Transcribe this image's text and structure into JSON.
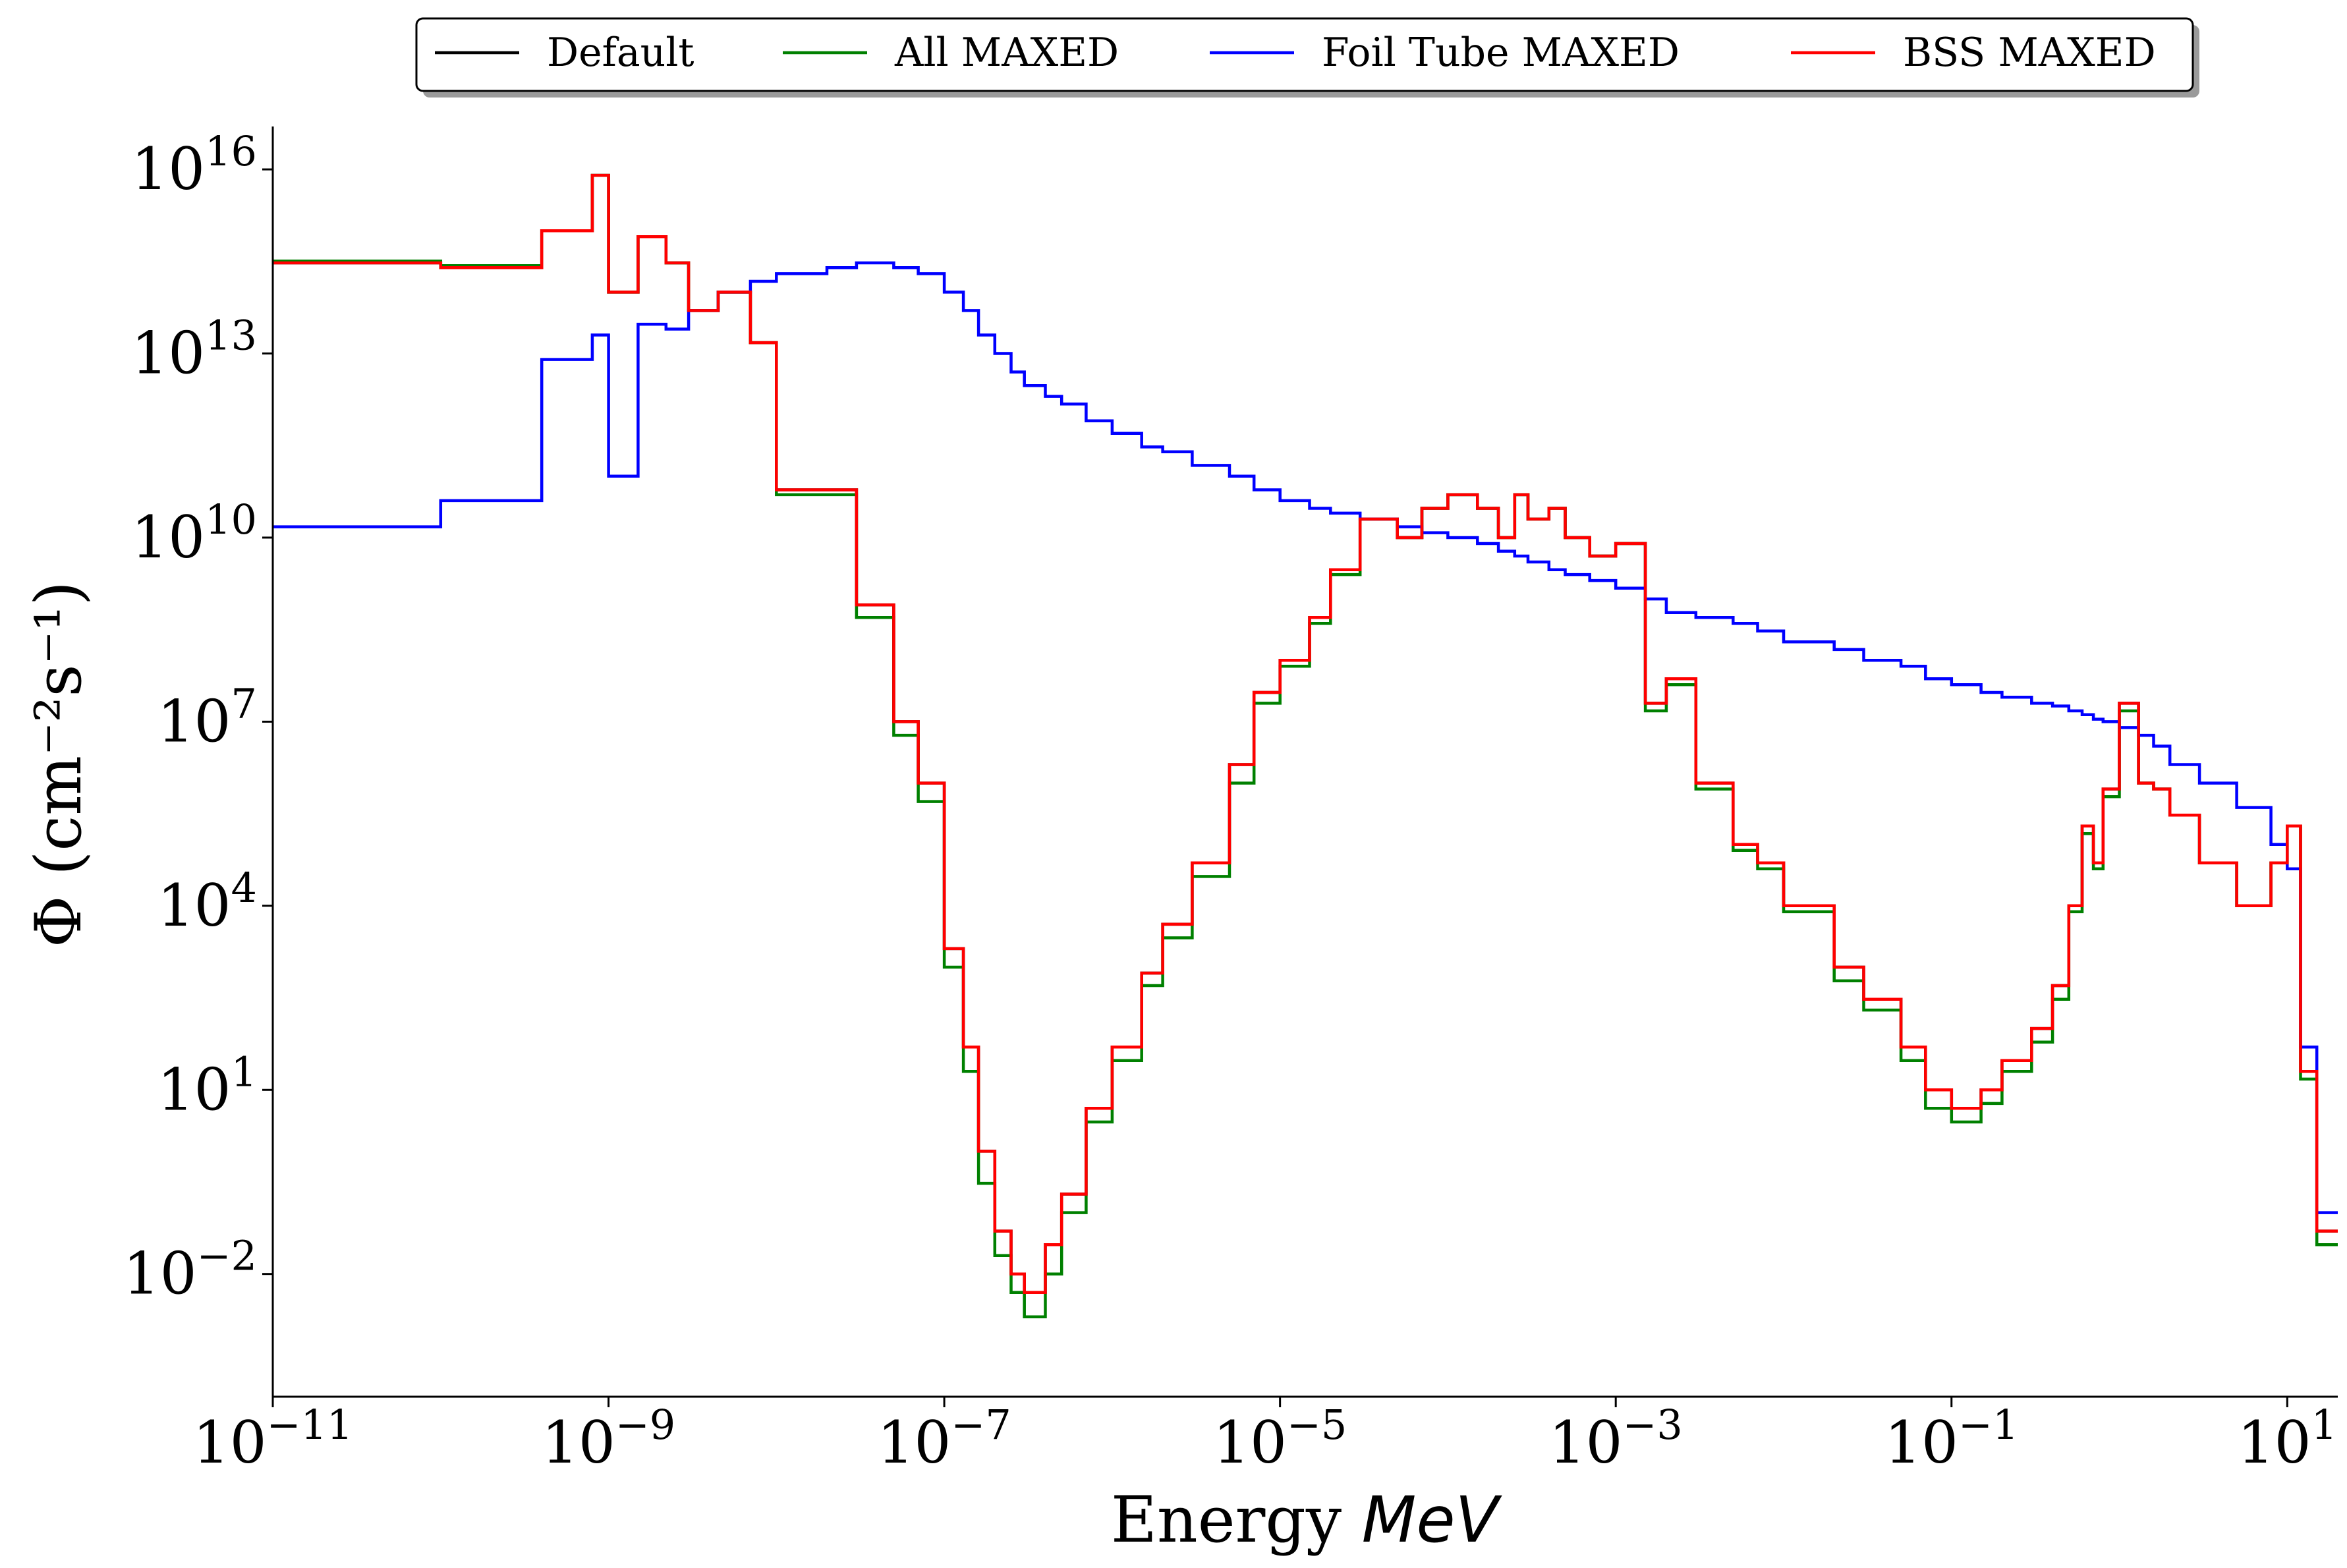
{
  "chart_data": {
    "type": "line",
    "step": true,
    "xscale": "log",
    "yscale": "log",
    "xlabel": "Energy",
    "xlabel_unit": "MeV",
    "ylabel": "Φ (cm⁻²s⁻¹)",
    "xlim": [
      1e-11,
      20
    ],
    "ylim": [
      0.0001,
      5e+16
    ],
    "xticks": [
      {
        "base": "10",
        "exp": "−11",
        "value": 1e-11
      },
      {
        "base": "10",
        "exp": "−9",
        "value": 1e-09
      },
      {
        "base": "10",
        "exp": "−7",
        "value": 1e-07
      },
      {
        "base": "10",
        "exp": "−5",
        "value": 1e-05
      },
      {
        "base": "10",
        "exp": "−3",
        "value": 0.001
      },
      {
        "base": "10",
        "exp": "−1",
        "value": 0.1
      },
      {
        "base": "10",
        "exp": "1",
        "value": 10
      }
    ],
    "yticks": [
      {
        "base": "10",
        "exp": "−2",
        "value": 0.01
      },
      {
        "base": "10",
        "exp": "1",
        "value": 10.0
      },
      {
        "base": "10",
        "exp": "4",
        "value": 10000.0
      },
      {
        "base": "10",
        "exp": "7",
        "value": 10000000.0
      },
      {
        "base": "10",
        "exp": "10",
        "value": 10000000000.0
      },
      {
        "base": "10",
        "exp": "13",
        "value": 10000000000000.0
      },
      {
        "base": "10",
        "exp": "16",
        "value": 1e+16
      }
    ],
    "legend_position": "top-center-outside",
    "grid": false,
    "series": [
      {
        "name": "Default",
        "color": "#000000",
        "x": [
          1e-11,
          1e-10,
          4e-10,
          8e-10,
          1e-09,
          1.5e-09,
          2.2e-09,
          3e-09,
          4.5e-09,
          7e-09,
          1e-08,
          2e-08,
          3e-08,
          5e-08,
          7e-08,
          1e-07,
          1.3e-07,
          1.6e-07,
          2e-07,
          2.5e-07,
          3e-07,
          4e-07,
          5e-07,
          7e-07,
          1e-06,
          1.5e-06,
          2e-06,
          3e-06,
          5e-06,
          7e-06,
          1e-05,
          1.5e-05,
          2e-05,
          3e-05,
          5e-05,
          7e-05,
          0.0001,
          0.00015,
          0.0002,
          0.00025,
          0.0003,
          0.0004,
          0.0005,
          0.0007,
          0.001,
          0.0015,
          0.002,
          0.003,
          0.005,
          0.007,
          0.01,
          0.02,
          0.03,
          0.05,
          0.07,
          0.1,
          0.15,
          0.2,
          0.3,
          0.4,
          0.5,
          0.6,
          0.7,
          0.8,
          1,
          1.3,
          1.6,
          2,
          3,
          5,
          8,
          10,
          12,
          15,
          20
        ],
        "y": [
          300000000000000.0,
          250000000000000.0,
          1000000000000000.0,
          8000000000000000.0,
          100000000000000.0,
          800000000000000.0,
          300000000000000.0,
          50000000000000.0,
          100000000000000.0,
          15000000000000.0,
          60000000000.0,
          60000000000.0,
          800000000.0,
          10000000.0,
          1000000.0,
          2000.0,
          50.0,
          1.0,
          0.05,
          0.01,
          0.005,
          0.03,
          0.2,
          5.0,
          50.0,
          800.0,
          5000.0,
          50000.0,
          2000000.0,
          30000000.0,
          100000000.0,
          500000000.0,
          3000000000.0,
          20000000000.0,
          10000000000.0,
          30000000000.0,
          50000000000.0,
          30000000000.0,
          10000000000.0,
          50000000000.0,
          20000000000.0,
          30000000000.0,
          10000000000.0,
          5000000000.0,
          8000000000.0,
          20000000.0,
          50000000.0,
          1000000.0,
          100000.0,
          50000.0,
          10000.0,
          1000.0,
          300.0,
          50.0,
          10.0,
          5.0,
          10.0,
          30.0,
          100.0,
          500.0,
          10000.0,
          200000.0,
          50000.0,
          800000.0,
          20000000.0,
          1000000.0,
          800000.0,
          300000.0,
          50000.0,
          10000.0,
          50000.0,
          200000.0,
          20.0,
          0.05,
          0.05
        ]
      },
      {
        "name": "All MAXED",
        "color": "#008000",
        "x": [
          1e-11,
          1e-10,
          4e-10,
          8e-10,
          1e-09,
          1.5e-09,
          2.2e-09,
          3e-09,
          4.5e-09,
          7e-09,
          1e-08,
          2e-08,
          3e-08,
          5e-08,
          7e-08,
          1e-07,
          1.3e-07,
          1.6e-07,
          2e-07,
          2.5e-07,
          3e-07,
          4e-07,
          5e-07,
          7e-07,
          1e-06,
          1.5e-06,
          2e-06,
          3e-06,
          5e-06,
          7e-06,
          1e-05,
          1.5e-05,
          2e-05,
          3e-05,
          5e-05,
          7e-05,
          0.0001,
          0.00015,
          0.0002,
          0.00025,
          0.0003,
          0.0004,
          0.0005,
          0.0007,
          0.001,
          0.0015,
          0.002,
          0.003,
          0.005,
          0.007,
          0.01,
          0.02,
          0.03,
          0.05,
          0.07,
          0.1,
          0.15,
          0.2,
          0.3,
          0.4,
          0.5,
          0.6,
          0.7,
          0.8,
          1,
          1.3,
          1.6,
          2,
          3,
          5,
          8,
          10,
          12,
          15,
          20
        ],
        "y": [
          320000000000000.0,
          270000000000000.0,
          1000000000000000.0,
          8000000000000000.0,
          100000000000000.0,
          800000000000000.0,
          300000000000000.0,
          50000000000000.0,
          100000000000000.0,
          15000000000000.0,
          50000000000.0,
          50000000000.0,
          500000000.0,
          6000000.0,
          500000.0,
          1000.0,
          20.0,
          0.3,
          0.02,
          0.005,
          0.002,
          0.01,
          0.1,
          3.0,
          30.0,
          500.0,
          3000.0,
          30000.0,
          1000000.0,
          20000000.0,
          80000000.0,
          400000000.0,
          2500000000.0,
          20000000000.0,
          10000000000.0,
          30000000000.0,
          50000000000.0,
          30000000000.0,
          10000000000.0,
          50000000000.0,
          20000000000.0,
          30000000000.0,
          10000000000.0,
          5000000000.0,
          8000000000.0,
          15000000.0,
          40000000.0,
          800000.0,
          80000.0,
          40000.0,
          8000.0,
          600.0,
          200.0,
          30.0,
          5.0,
          3.0,
          6.0,
          20.0,
          60.0,
          300.0,
          8000.0,
          150000.0,
          40000.0,
          600000.0,
          15000000.0,
          1000000.0,
          800000.0,
          300000.0,
          50000.0,
          10000.0,
          50000.0,
          200000.0,
          15.0,
          0.03,
          0.03
        ]
      },
      {
        "name": "Foil Tube MAXED",
        "color": "#0000ff",
        "x": [
          1e-11,
          1e-10,
          4e-10,
          8e-10,
          1e-09,
          1.5e-09,
          2.2e-09,
          3e-09,
          4.5e-09,
          7e-09,
          1e-08,
          2e-08,
          3e-08,
          5e-08,
          7e-08,
          1e-07,
          1.3e-07,
          1.6e-07,
          2e-07,
          2.5e-07,
          3e-07,
          4e-07,
          5e-07,
          7e-07,
          1e-06,
          1.5e-06,
          2e-06,
          3e-06,
          5e-06,
          7e-06,
          1e-05,
          1.5e-05,
          2e-05,
          3e-05,
          5e-05,
          7e-05,
          0.0001,
          0.00015,
          0.0002,
          0.00025,
          0.0003,
          0.0004,
          0.0005,
          0.0007,
          0.001,
          0.0015,
          0.002,
          0.003,
          0.005,
          0.007,
          0.01,
          0.02,
          0.03,
          0.05,
          0.07,
          0.1,
          0.15,
          0.2,
          0.3,
          0.4,
          0.5,
          0.6,
          0.7,
          0.8,
          1,
          1.3,
          1.6,
          2,
          3,
          5,
          8,
          10,
          12,
          15,
          20
        ],
        "y": [
          15000000000.0,
          40000000000.0,
          8000000000000.0,
          20000000000000.0,
          100000000000.0,
          30000000000000.0,
          25000000000000.0,
          50000000000000.0,
          100000000000000.0,
          150000000000000.0,
          200000000000000.0,
          250000000000000.0,
          300000000000000.0,
          250000000000000.0,
          200000000000000.0,
          100000000000000.0,
          50000000000000.0,
          20000000000000.0,
          10000000000000.0,
          5000000000000.0,
          3000000000000.0,
          2000000000000.0,
          1500000000000.0,
          800000000000.0,
          500000000000.0,
          300000000000.0,
          250000000000.0,
          150000000000.0,
          100000000000.0,
          60000000000.0,
          40000000000.0,
          30000000000.0,
          25000000000.0,
          20000000000.0,
          15000000000.0,
          12000000000.0,
          10000000000.0,
          8000000000.0,
          6000000000.0,
          5000000000.0,
          4000000000.0,
          3000000000.0,
          2500000000.0,
          2000000000.0,
          1500000000.0,
          1000000000.0,
          600000000.0,
          500000000.0,
          400000000.0,
          300000000.0,
          200000000.0,
          150000000.0,
          100000000.0,
          80000000.0,
          50000000.0,
          40000000.0,
          30000000.0,
          25000000.0,
          20000000.0,
          18000000.0,
          15000000.0,
          13000000.0,
          11000000.0,
          10000000.0,
          8000000.0,
          6000000.0,
          4000000.0,
          2000000.0,
          1000000.0,
          400000.0,
          100000.0,
          40000.0,
          50.0,
          0.1,
          0.1
        ]
      },
      {
        "name": "BSS MAXED",
        "color": "#ff0000",
        "x": [
          1e-11,
          1e-10,
          4e-10,
          8e-10,
          1e-09,
          1.5e-09,
          2.2e-09,
          3e-09,
          4.5e-09,
          7e-09,
          1e-08,
          2e-08,
          3e-08,
          5e-08,
          7e-08,
          1e-07,
          1.3e-07,
          1.6e-07,
          2e-07,
          2.5e-07,
          3e-07,
          4e-07,
          5e-07,
          7e-07,
          1e-06,
          1.5e-06,
          2e-06,
          3e-06,
          5e-06,
          7e-06,
          1e-05,
          1.5e-05,
          2e-05,
          3e-05,
          5e-05,
          7e-05,
          0.0001,
          0.00015,
          0.0002,
          0.00025,
          0.0003,
          0.0004,
          0.0005,
          0.0007,
          0.001,
          0.0015,
          0.002,
          0.003,
          0.005,
          0.007,
          0.01,
          0.02,
          0.03,
          0.05,
          0.07,
          0.1,
          0.15,
          0.2,
          0.3,
          0.4,
          0.5,
          0.6,
          0.7,
          0.8,
          1,
          1.3,
          1.6,
          2,
          3,
          5,
          8,
          10,
          12,
          15,
          20
        ],
        "y": [
          300000000000000.0,
          250000000000000.0,
          1000000000000000.0,
          8000000000000000.0,
          100000000000000.0,
          800000000000000.0,
          300000000000000.0,
          50000000000000.0,
          100000000000000.0,
          15000000000000.0,
          60000000000.0,
          60000000000.0,
          800000000.0,
          10000000.0,
          1000000.0,
          2000.0,
          50.0,
          1.0,
          0.05,
          0.01,
          0.005,
          0.03,
          0.2,
          5.0,
          50.0,
          800.0,
          5000.0,
          50000.0,
          2000000.0,
          30000000.0,
          100000000.0,
          500000000.0,
          3000000000.0,
          20000000000.0,
          10000000000.0,
          30000000000.0,
          50000000000.0,
          30000000000.0,
          10000000000.0,
          50000000000.0,
          20000000000.0,
          30000000000.0,
          10000000000.0,
          5000000000.0,
          8000000000.0,
          20000000.0,
          50000000.0,
          1000000.0,
          100000.0,
          50000.0,
          10000.0,
          1000.0,
          300.0,
          50.0,
          10.0,
          5.0,
          10.0,
          30.0,
          100.0,
          500.0,
          10000.0,
          200000.0,
          50000.0,
          800000.0,
          20000000.0,
          1000000.0,
          800000.0,
          300000.0,
          50000.0,
          10000.0,
          50000.0,
          200000.0,
          20.0,
          0.05,
          0.05
        ]
      }
    ]
  }
}
